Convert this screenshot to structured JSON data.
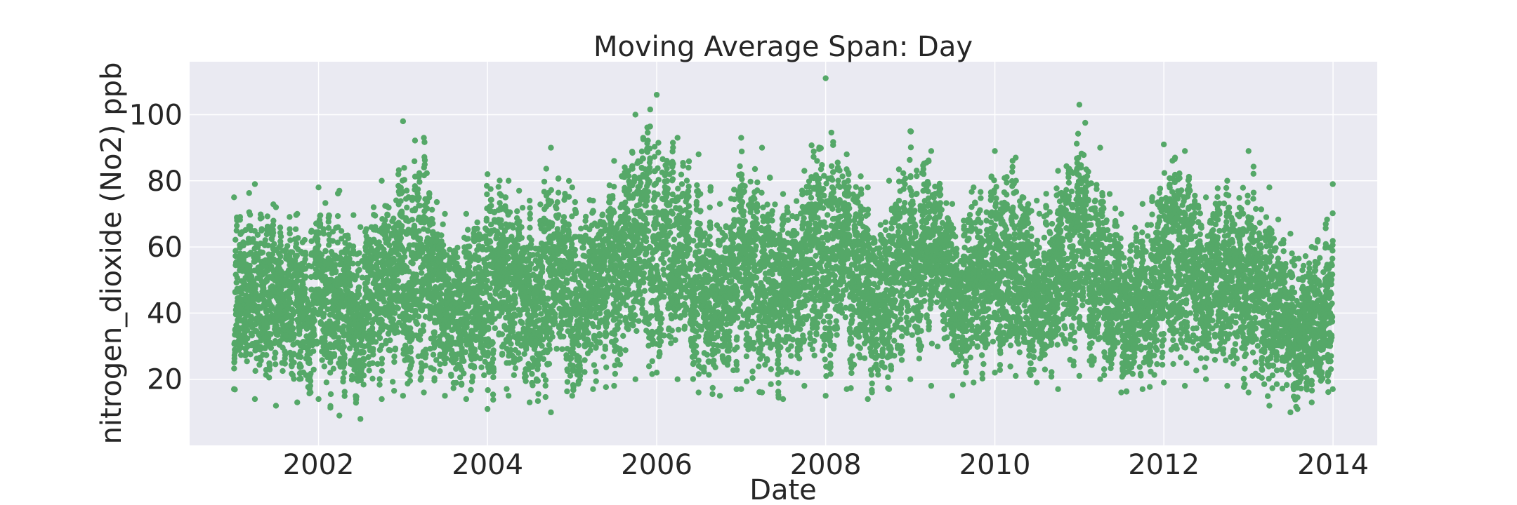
{
  "chart_data": {
    "type": "scatter",
    "title": "Moving Average Span: Day",
    "xlabel": "Date",
    "ylabel": "nitrogen_dioxide (No2) ppb",
    "xlim": [
      "2000-06-23",
      "2014-07-11"
    ],
    "ylim": [
      0,
      116
    ],
    "x_ticks": [
      "2002",
      "2004",
      "2006",
      "2008",
      "2010",
      "2012",
      "2014"
    ],
    "y_ticks": [
      "20",
      "40",
      "60",
      "80",
      "100"
    ],
    "grid": true,
    "marker_color": "#55a868",
    "background_color": "#eaeaf2",
    "series": [
      {
        "x": [
          "2001-01-01",
          "2001-04-01",
          "2001-07-01",
          "2001-10-01",
          "2002-01-01",
          "2002-04-01",
          "2002-07-01",
          "2002-10-01",
          "2003-01-01",
          "2003-04-01",
          "2003-07-01",
          "2003-10-01",
          "2004-01-01",
          "2004-04-01",
          "2004-07-01",
          "2004-10-01",
          "2005-01-01",
          "2005-04-01",
          "2005-07-01",
          "2005-10-01",
          "2006-01-01",
          "2006-04-01",
          "2006-07-01",
          "2006-10-01",
          "2007-01-01",
          "2007-04-01",
          "2007-07-01",
          "2007-10-01",
          "2008-01-01",
          "2008-04-01",
          "2008-07-01",
          "2008-10-01",
          "2009-01-01",
          "2009-04-01",
          "2009-07-01",
          "2009-10-01",
          "2010-01-01",
          "2010-04-01",
          "2010-07-01",
          "2010-10-01",
          "2011-01-01",
          "2011-04-01",
          "2011-07-01",
          "2011-10-01",
          "2012-01-01",
          "2012-04-01",
          "2012-07-01",
          "2012-10-01",
          "2013-01-01",
          "2013-04-01",
          "2013-07-01",
          "2013-10-01",
          "2013-12-31"
        ],
        "y_min": [
          17,
          14,
          12,
          13,
          14,
          9,
          8,
          14,
          15,
          16,
          15,
          14,
          11,
          15,
          13,
          10,
          15,
          17,
          18,
          20,
          22,
          20,
          16,
          15,
          17,
          16,
          14,
          18,
          15,
          17,
          14,
          17,
          20,
          18,
          15,
          19,
          22,
          21,
          19,
          17,
          21,
          20,
          16,
          17,
          19,
          18,
          20,
          18,
          16,
          12,
          10,
          13,
          17
        ],
        "y_max": [
          75,
          79,
          72,
          70,
          78,
          77,
          66,
          80,
          98,
          93,
          70,
          70,
          82,
          80,
          74,
          90,
          78,
          74,
          86,
          100,
          106,
          93,
          88,
          73,
          93,
          90,
          76,
          83,
          111,
          88,
          78,
          80,
          95,
          89,
          73,
          78,
          89,
          87,
          74,
          83,
          103,
          90,
          70,
          73,
          91,
          89,
          75,
          80,
          89,
          78,
          64,
          60,
          79
        ]
      }
    ]
  }
}
